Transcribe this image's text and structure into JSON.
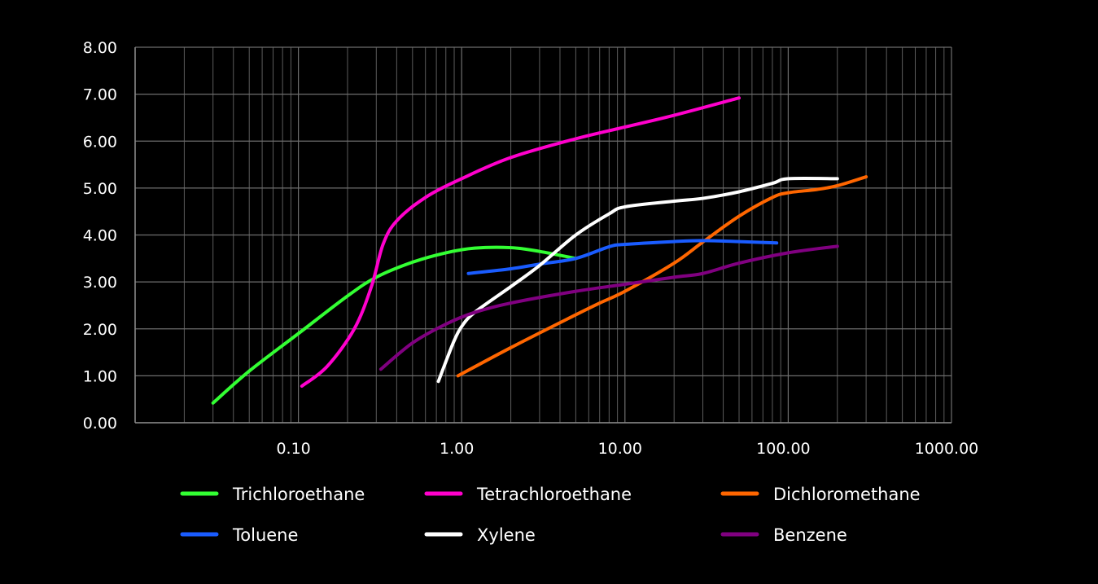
{
  "chart_data": {
    "type": "line",
    "title": "",
    "xlabel": "",
    "ylabel": "",
    "x_scale": "log",
    "xlim": [
      0.01,
      1000
    ],
    "ylim": [
      0,
      8
    ],
    "grid": true,
    "legend_position": "bottom",
    "x_ticks": [
      {
        "value": 0.1,
        "label": "0.10"
      },
      {
        "value": 1,
        "label": "1.00"
      },
      {
        "value": 10,
        "label": "10.00"
      },
      {
        "value": 100,
        "label": "100.00"
      },
      {
        "value": 1000,
        "label": "1000.00"
      }
    ],
    "y_ticks": [
      {
        "value": 0,
        "label": "0.00"
      },
      {
        "value": 1,
        "label": "1.00"
      },
      {
        "value": 2,
        "label": "2.00"
      },
      {
        "value": 3,
        "label": "3.00"
      },
      {
        "value": 4,
        "label": "4.00"
      },
      {
        "value": 5,
        "label": "5.00"
      },
      {
        "value": 6,
        "label": "6.00"
      },
      {
        "value": 7,
        "label": "7.00"
      },
      {
        "value": 8,
        "label": "8.00"
      }
    ],
    "series": [
      {
        "name": "Trichloroethane",
        "color": "#33ff33",
        "x": [
          0.03,
          0.05,
          0.1,
          0.2,
          0.3,
          0.5,
          0.8,
          1.2,
          2,
          3,
          5
        ],
        "y": [
          0.42,
          1.1,
          1.9,
          2.7,
          3.1,
          3.42,
          3.62,
          3.72,
          3.73,
          3.65,
          3.5
        ]
      },
      {
        "name": "Tetrachloroethane",
        "color": "#ff00cc",
        "x": [
          0.105,
          0.15,
          0.22,
          0.28,
          0.33,
          0.4,
          0.6,
          1,
          2,
          5,
          10,
          20,
          50
        ],
        "y": [
          0.78,
          1.2,
          2.0,
          2.9,
          3.8,
          4.3,
          4.8,
          5.2,
          5.65,
          6.05,
          6.3,
          6.55,
          6.92
        ]
      },
      {
        "name": "Dichloromethane",
        "color": "#ff6600",
        "x": [
          0.95,
          2,
          5,
          7,
          10,
          20,
          30,
          50,
          80,
          100,
          150,
          200,
          300
        ],
        "y": [
          1.0,
          1.6,
          2.3,
          2.55,
          2.8,
          3.4,
          3.85,
          4.4,
          4.8,
          4.9,
          4.97,
          5.05,
          5.24
        ]
      },
      {
        "name": "Toluene",
        "color": "#1a5cff",
        "x": [
          1.1,
          2,
          3,
          5,
          8,
          10,
          20,
          30,
          50,
          85
        ],
        "y": [
          3.18,
          3.28,
          3.38,
          3.5,
          3.75,
          3.8,
          3.86,
          3.88,
          3.86,
          3.83
        ]
      },
      {
        "name": "Xylene",
        "color": "#ffffff",
        "x": [
          0.72,
          0.8,
          0.9,
          1.0,
          1.2,
          2,
          3,
          5,
          8,
          10,
          20,
          30,
          50,
          80,
          100,
          200
        ],
        "y": [
          0.88,
          1.3,
          1.75,
          2.05,
          2.35,
          2.9,
          3.35,
          4.0,
          4.45,
          4.6,
          4.72,
          4.78,
          4.92,
          5.1,
          5.2,
          5.2
        ]
      },
      {
        "name": "Benzene",
        "color": "#800080",
        "x": [
          0.32,
          0.5,
          0.8,
          1.2,
          2,
          5,
          10,
          20,
          30,
          50,
          100,
          200
        ],
        "y": [
          1.14,
          1.7,
          2.1,
          2.35,
          2.55,
          2.8,
          2.95,
          3.1,
          3.18,
          3.4,
          3.62,
          3.76
        ]
      }
    ]
  }
}
